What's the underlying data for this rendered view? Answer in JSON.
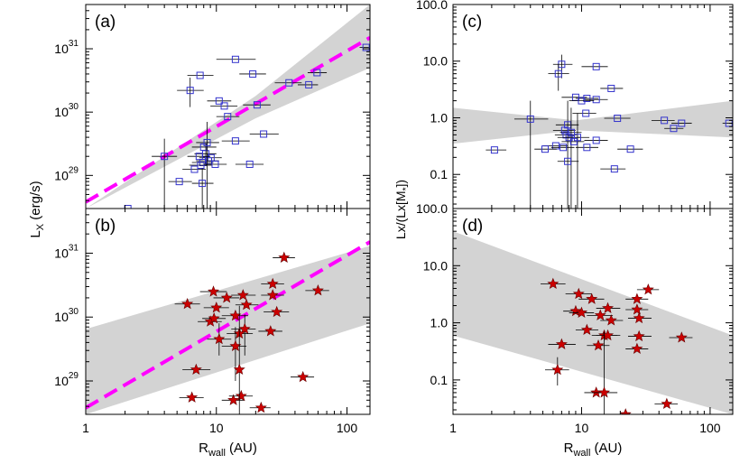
{
  "colors": {
    "square": "#3333cc",
    "star_fill": "#cc0000",
    "star_stroke": "#660000",
    "fit": "#ff00ff",
    "band": "#d3d3d3",
    "errbar": "#000000"
  },
  "chart_data": [
    {
      "type": "scatter",
      "panel_label": "(a)",
      "marker": "square",
      "x_scale": "log",
      "y_scale": "log",
      "xlim": [
        1,
        150
      ],
      "ylim": [
        3e+28,
        5e+31
      ],
      "ylabel_main": "L",
      "ylabel_sub": "X",
      "ylabel_tail": " (erg/s)",
      "ytick_values": [
        1e+29,
        1e+30,
        1e+31
      ],
      "ytick_labels": [
        [
          "10",
          "29"
        ],
        [
          "10",
          "30"
        ],
        [
          "10",
          "31"
        ]
      ],
      "points": [
        {
          "x": 140,
          "y": 1.05e+31,
          "xl": 125,
          "xh": 155
        },
        {
          "x": 59,
          "y": 4.2e+30,
          "xl": 50,
          "xh": 70
        },
        {
          "x": 51,
          "y": 2.7e+30,
          "xl": 42,
          "xh": 60
        },
        {
          "x": 36,
          "y": 2.9e+30,
          "xl": 28,
          "xh": 45
        },
        {
          "x": 14,
          "y": 6.8e+30,
          "xl": 10,
          "xh": 20
        },
        {
          "x": 19,
          "y": 4e+30,
          "xl": 15,
          "xh": 24
        },
        {
          "x": 7.5,
          "y": 3.8e+30,
          "xl": 6,
          "xh": 9.5
        },
        {
          "x": 6.3,
          "y": 2.2e+30,
          "xl": 5,
          "xh": 8,
          "yl": 1.2e+30,
          "yh": 3.5e+30
        },
        {
          "x": 10.5,
          "y": 1.5e+30,
          "xl": 8.5,
          "xh": 13
        },
        {
          "x": 11.5,
          "y": 1.25e+30,
          "xl": 9,
          "xh": 14.5
        },
        {
          "x": 12.2,
          "y": 8.5e+29,
          "xl": 10,
          "xh": 15
        },
        {
          "x": 20.5,
          "y": 1.3e+30,
          "xl": 16,
          "xh": 26
        },
        {
          "x": 14,
          "y": 3.5e+29,
          "xl": 11,
          "xh": 18
        },
        {
          "x": 23,
          "y": 4.5e+29,
          "xl": 18,
          "xh": 30
        },
        {
          "x": 8,
          "y": 2.8e+29,
          "xl": 6.5,
          "xh": 10
        },
        {
          "x": 8.3,
          "y": 2.2e+29,
          "xl": 6.8,
          "xh": 10,
          "yl": 1.5e+29,
          "yh": 3.2e+29
        },
        {
          "x": 9.1,
          "y": 1.9e+29,
          "xl": 7.4,
          "xh": 11
        },
        {
          "x": 7.4,
          "y": 2e+29,
          "xl": 6,
          "xh": 9
        },
        {
          "x": 8.7,
          "y": 1.7e+29,
          "xl": 7,
          "xh": 10.5
        },
        {
          "x": 7.9,
          "y": 1.6e+29,
          "xl": 6.5,
          "xh": 9.5
        },
        {
          "x": 7.6,
          "y": 1.45e+29,
          "xl": 6.2,
          "xh": 9.3
        },
        {
          "x": 6.8,
          "y": 1.25e+29,
          "xl": 5.5,
          "xh": 8.3
        },
        {
          "x": 9.8,
          "y": 1.5e+29,
          "xl": 8,
          "xh": 12
        },
        {
          "x": 18,
          "y": 1.5e+29,
          "xl": 14,
          "xh": 23
        },
        {
          "x": 4,
          "y": 2e+29,
          "xl": 3.2,
          "xh": 5,
          "yl": 3e+28,
          "yh": 3.8e+29
        },
        {
          "x": 5.2,
          "y": 8e+28,
          "xl": 4.3,
          "xh": 6.5
        },
        {
          "x": 7.8,
          "y": 7.5e+28,
          "xl": 6.5,
          "xh": 9.5,
          "yl": 3e+28,
          "yh": 1.3e+29
        },
        {
          "x": 2.1,
          "y": 3e+28,
          "xl": 1.8,
          "xh": 2.4
        },
        {
          "x": 8.5,
          "y": 3.3e+29,
          "xl": 7,
          "xh": 10.5,
          "yl": 3e+28,
          "yh": 7e+29
        }
      ],
      "fit": {
        "x": [
          1,
          150
        ],
        "y": [
          3.8e+28,
          1.5e+31
        ]
      },
      "band": {
        "upper_x": [
          1,
          20,
          150
        ],
        "upper_y": [
          3e+28,
          1.8e+30,
          5e+31
        ],
        "lower_x": [
          150,
          20,
          1
        ],
        "lower_y": [
          5e+30,
          8e+29,
          3e+28
        ]
      }
    },
    {
      "type": "scatter",
      "panel_label": "(b)",
      "marker": "star",
      "x_scale": "log",
      "y_scale": "log",
      "xlim": [
        1,
        150
      ],
      "ylim": [
        3e+28,
        5e+31
      ],
      "xlabel_main": "R",
      "xlabel_sub": "wall",
      "xlabel_tail": " (AU)",
      "xtick_values": [
        1,
        10,
        100
      ],
      "xtick_labels": [
        "1",
        "10",
        "100"
      ],
      "ytick_values": [
        1e+29,
        1e+30,
        1e+31
      ],
      "ytick_labels": [
        [
          "10",
          "29"
        ],
        [
          "10",
          "30"
        ],
        [
          "10",
          "31"
        ]
      ],
      "points": [
        {
          "x": 33,
          "y": 8.5e+30,
          "xl": 27,
          "xh": 40
        },
        {
          "x": 60,
          "y": 2.6e+30,
          "xl": 48,
          "xh": 73
        },
        {
          "x": 27,
          "y": 3.3e+30,
          "xl": 22,
          "xh": 33
        },
        {
          "x": 9.5,
          "y": 2.5e+30,
          "xl": 7.5,
          "xh": 12
        },
        {
          "x": 12,
          "y": 2e+30,
          "xl": 9.5,
          "xh": 15
        },
        {
          "x": 16,
          "y": 2.2e+30,
          "xl": 13,
          "xh": 20
        },
        {
          "x": 27,
          "y": 2.2e+30,
          "xl": 22,
          "xh": 33
        },
        {
          "x": 6,
          "y": 1.6e+30,
          "xl": 4.8,
          "xh": 7.5
        },
        {
          "x": 10,
          "y": 1.4e+30,
          "xl": 8,
          "xh": 12.5
        },
        {
          "x": 17,
          "y": 1.55e+30,
          "xl": 14,
          "xh": 21
        },
        {
          "x": 14,
          "y": 1.05e+30,
          "xl": 11,
          "xh": 17.5
        },
        {
          "x": 29,
          "y": 1.2e+30,
          "xl": 23,
          "xh": 36
        },
        {
          "x": 9,
          "y": 8.5e+29,
          "xl": 7.2,
          "xh": 11
        },
        {
          "x": 9.6,
          "y": 9.5e+29,
          "xl": 7.8,
          "xh": 11.8
        },
        {
          "x": 16.5,
          "y": 6.5e+29,
          "xl": 13,
          "xh": 20,
          "yl": 2.5e+29,
          "yh": 1.1e+30
        },
        {
          "x": 15,
          "y": 5.5e+29,
          "xl": 12,
          "xh": 19
        },
        {
          "x": 10.5,
          "y": 4.5e+29,
          "xl": 8.5,
          "xh": 13,
          "yl": 2.5e+29,
          "yh": 8e+29
        },
        {
          "x": 14,
          "y": 3.5e+29,
          "xl": 11,
          "xh": 17,
          "yl": 1e+29,
          "yh": 7e+29
        },
        {
          "x": 26,
          "y": 6e+29,
          "xl": 21,
          "xh": 32
        },
        {
          "x": 7,
          "y": 1.5e+29,
          "xl": 5.5,
          "xh": 9
        },
        {
          "x": 46,
          "y": 1.15e+29,
          "xl": 37,
          "xh": 56
        },
        {
          "x": 6.5,
          "y": 5.5e+28,
          "xl": 5.2,
          "xh": 8
        },
        {
          "x": 13.5,
          "y": 5e+28,
          "xl": 11,
          "xh": 16.5
        },
        {
          "x": 15.5,
          "y": 5.8e+28,
          "xl": 12.5,
          "xh": 19
        },
        {
          "x": 22,
          "y": 3.8e+28,
          "xl": 18,
          "xh": 26
        },
        {
          "x": 15,
          "y": 1.5e+29,
          "xl": 15,
          "xh": 15,
          "yl": 3e+28,
          "yh": 1.5e+30
        }
      ],
      "fit": {
        "x": [
          1,
          150
        ],
        "y": [
          3.8e+28,
          1.5e+31
        ]
      },
      "band": {
        "upper_x": [
          1,
          150
        ],
        "upper_y": [
          6.5e+29,
          1.3e+31
        ],
        "lower_x": [
          150,
          1
        ],
        "lower_y": [
          8e+29,
          3e+28
        ]
      }
    },
    {
      "type": "scatter",
      "panel_label": "(c)",
      "marker": "square",
      "x_scale": "log",
      "y_scale": "log",
      "xlim": [
        1,
        150
      ],
      "ylim": [
        0.025,
        100
      ],
      "ylabel_text": "Lx/(Lx[M",
      "ylabel_sub": "*",
      "ylabel_tail": "])",
      "ytick_values": [
        0.1,
        1,
        10,
        100
      ],
      "ytick_labels": [
        "0.1",
        "1.0",
        "10.0",
        "100.0"
      ],
      "points": [
        {
          "x": 7,
          "y": 8.8,
          "xl": 6,
          "xh": 8.5,
          "yl": 5,
          "yh": 13
        },
        {
          "x": 13,
          "y": 8,
          "xl": 10,
          "xh": 16
        },
        {
          "x": 6.6,
          "y": 6,
          "xl": 5.5,
          "xh": 8,
          "yl": 3,
          "yh": 9
        },
        {
          "x": 17,
          "y": 3.3,
          "xl": 14,
          "xh": 21
        },
        {
          "x": 9,
          "y": 2.3,
          "xl": 7,
          "xh": 11
        },
        {
          "x": 11,
          "y": 2.2,
          "xl": 9,
          "xh": 13.5
        },
        {
          "x": 13,
          "y": 2.1,
          "xl": 10.5,
          "xh": 16
        },
        {
          "x": 10,
          "y": 2,
          "xl": 8,
          "xh": 12.5
        },
        {
          "x": 10.8,
          "y": 1.2,
          "xl": 8.5,
          "xh": 13
        },
        {
          "x": 4,
          "y": 0.95,
          "xl": 3,
          "xh": 5.5,
          "yl": 0.02,
          "yh": 2
        },
        {
          "x": 19,
          "y": 0.98,
          "xl": 15,
          "xh": 24
        },
        {
          "x": 44,
          "y": 0.9,
          "xl": 35,
          "xh": 53
        },
        {
          "x": 60,
          "y": 0.8,
          "xl": 50,
          "xh": 72
        },
        {
          "x": 140,
          "y": 0.8,
          "xl": 125,
          "xh": 155
        },
        {
          "x": 52,
          "y": 0.65,
          "xl": 44,
          "xh": 62
        },
        {
          "x": 7.8,
          "y": 0.75,
          "xl": 6.3,
          "xh": 9.5,
          "yl": 0.02,
          "yh": 2
        },
        {
          "x": 7.4,
          "y": 0.6,
          "xl": 6,
          "xh": 9
        },
        {
          "x": 8.3,
          "y": 0.55,
          "xl": 6.8,
          "xh": 10,
          "yl": 0.02,
          "yh": 1.5
        },
        {
          "x": 7.6,
          "y": 0.5,
          "xl": 6.2,
          "xh": 9.2
        },
        {
          "x": 8,
          "y": 0.45,
          "xl": 6.5,
          "xh": 9.8
        },
        {
          "x": 9.3,
          "y": 0.45,
          "xl": 7.5,
          "xh": 11.5,
          "yl": 0.02,
          "yh": 1.2
        },
        {
          "x": 8.7,
          "y": 0.38,
          "xl": 7,
          "xh": 10.5
        },
        {
          "x": 13,
          "y": 0.4,
          "xl": 10.5,
          "xh": 16
        },
        {
          "x": 6.3,
          "y": 0.32,
          "xl": 5,
          "xh": 7.8
        },
        {
          "x": 7.2,
          "y": 0.3,
          "xl": 5.8,
          "xh": 8.8
        },
        {
          "x": 11,
          "y": 0.3,
          "xl": 9,
          "xh": 13.5
        },
        {
          "x": 24,
          "y": 0.28,
          "xl": 19,
          "xh": 30
        },
        {
          "x": 2.1,
          "y": 0.27,
          "xl": 1.8,
          "xh": 2.6
        },
        {
          "x": 5.2,
          "y": 0.28,
          "xl": 4.3,
          "xh": 6.4
        },
        {
          "x": 7.8,
          "y": 0.17,
          "xl": 6.5,
          "xh": 9.5
        },
        {
          "x": 18,
          "y": 0.125,
          "xl": 14,
          "xh": 22
        }
      ],
      "band": {
        "upper_x": [
          1,
          9,
          150
        ],
        "upper_y": [
          1.5,
          0.9,
          2
        ],
        "lower_x": [
          150,
          9,
          1
        ],
        "lower_y": [
          0.45,
          0.6,
          0.35
        ]
      }
    },
    {
      "type": "scatter",
      "panel_label": "(d)",
      "marker": "star",
      "x_scale": "log",
      "y_scale": "log",
      "xlim": [
        1,
        150
      ],
      "ylim": [
        0.025,
        100
      ],
      "xlabel_main": "R",
      "xlabel_sub": "wall",
      "xlabel_tail": " (AU)",
      "xtick_values": [
        1,
        10,
        100
      ],
      "xtick_labels": [
        "1",
        "10",
        "100"
      ],
      "ytick_values": [
        0.1,
        1,
        10,
        100
      ],
      "ytick_labels": [
        "0.1",
        "1.0",
        "10.0",
        "100.0"
      ],
      "points": [
        {
          "x": 6,
          "y": 4.8,
          "xl": 4.8,
          "xh": 7.5
        },
        {
          "x": 33,
          "y": 3.8,
          "xl": 27,
          "xh": 40
        },
        {
          "x": 9.5,
          "y": 3.2,
          "xl": 7.5,
          "xh": 12
        },
        {
          "x": 12,
          "y": 2.6,
          "xl": 9.5,
          "xh": 15
        },
        {
          "x": 27,
          "y": 2.6,
          "xl": 22,
          "xh": 33
        },
        {
          "x": 16,
          "y": 1.8,
          "xl": 13,
          "xh": 20
        },
        {
          "x": 27,
          "y": 1.7,
          "xl": 22,
          "xh": 33
        },
        {
          "x": 9,
          "y": 1.6,
          "xl": 7.2,
          "xh": 11
        },
        {
          "x": 10,
          "y": 1.5,
          "xl": 8,
          "xh": 12.5
        },
        {
          "x": 14,
          "y": 1.35,
          "xl": 11,
          "xh": 17.5
        },
        {
          "x": 28,
          "y": 1.2,
          "xl": 23,
          "xh": 35
        },
        {
          "x": 17,
          "y": 1.1,
          "xl": 14,
          "xh": 21
        },
        {
          "x": 11,
          "y": 0.75,
          "xl": 9,
          "xh": 13.5
        },
        {
          "x": 15,
          "y": 0.6,
          "xl": 12,
          "xh": 19
        },
        {
          "x": 16,
          "y": 0.6,
          "xl": 13,
          "xh": 20
        },
        {
          "x": 28,
          "y": 0.58,
          "xl": 23,
          "xh": 35
        },
        {
          "x": 60,
          "y": 0.55,
          "xl": 48,
          "xh": 73
        },
        {
          "x": 7,
          "y": 0.42,
          "xl": 5.5,
          "xh": 9
        },
        {
          "x": 13.5,
          "y": 0.4,
          "xl": 11,
          "xh": 16.5
        },
        {
          "x": 27,
          "y": 0.35,
          "xl": 22,
          "xh": 33
        },
        {
          "x": 6.5,
          "y": 0.15,
          "xl": 5.2,
          "xh": 8,
          "yl": 0.08,
          "yh": 0.25
        },
        {
          "x": 13,
          "y": 0.06,
          "xl": 10.5,
          "xh": 16
        },
        {
          "x": 15,
          "y": 0.06,
          "xl": 12,
          "xh": 19,
          "yl": 0.025,
          "yh": 0.7
        },
        {
          "x": 46,
          "y": 0.038,
          "xl": 37,
          "xh": 56
        },
        {
          "x": 22,
          "y": 0.025,
          "xl": 18,
          "xh": 26
        }
      ],
      "band": {
        "upper_x": [
          1,
          150
        ],
        "upper_y": [
          40,
          0.6
        ],
        "lower_x": [
          150,
          1
        ],
        "lower_y": [
          0.025,
          0.6
        ]
      }
    }
  ]
}
